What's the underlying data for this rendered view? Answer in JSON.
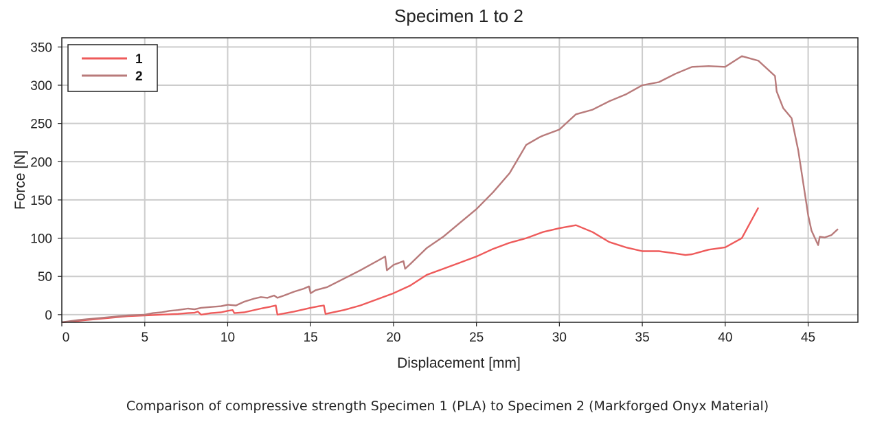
{
  "colors": {
    "series1": "#ee5a5a",
    "series2": "#b87a7a",
    "grid": "#cccccc",
    "axis": "#222222"
  },
  "chart_data": {
    "type": "line",
    "title": "Specimen 1 to 2",
    "xlabel": "Displacement [mm]",
    "ylabel": "Force [N]",
    "xlim": [
      0,
      48
    ],
    "ylim": [
      -10,
      362
    ],
    "xticks": [
      0,
      5,
      10,
      15,
      20,
      25,
      30,
      35,
      40,
      45
    ],
    "yticks": [
      0,
      50,
      100,
      150,
      200,
      250,
      300,
      350
    ],
    "grid": true,
    "legend_position": "top-left",
    "series": [
      {
        "name": "1",
        "color": "#ee5a5a",
        "points": [
          [
            0,
            -10
          ],
          [
            1,
            -8
          ],
          [
            2,
            -6
          ],
          [
            3,
            -4
          ],
          [
            4,
            -2
          ],
          [
            5,
            -1
          ],
          [
            6,
            0
          ],
          [
            7,
            1
          ],
          [
            7.6,
            2
          ],
          [
            8,
            2.5
          ],
          [
            8.2,
            4
          ],
          [
            8.4,
            0
          ],
          [
            9,
            2
          ],
          [
            9.6,
            3
          ],
          [
            10,
            5
          ],
          [
            10.3,
            6
          ],
          [
            10.4,
            2
          ],
          [
            11,
            3
          ],
          [
            12,
            8
          ],
          [
            12.5,
            10
          ],
          [
            12.9,
            12
          ],
          [
            13,
            0
          ],
          [
            14,
            4
          ],
          [
            15,
            9
          ],
          [
            15.5,
            11
          ],
          [
            15.8,
            12
          ],
          [
            15.9,
            1
          ],
          [
            17,
            6
          ],
          [
            18,
            12
          ],
          [
            19,
            20
          ],
          [
            20,
            28
          ],
          [
            21,
            38
          ],
          [
            22,
            52
          ],
          [
            23,
            60
          ],
          [
            24,
            68
          ],
          [
            25,
            76
          ],
          [
            26,
            86
          ],
          [
            27,
            94
          ],
          [
            28,
            100
          ],
          [
            29,
            108
          ],
          [
            30,
            113
          ],
          [
            31,
            117
          ],
          [
            32,
            108
          ],
          [
            33,
            95
          ],
          [
            34,
            88
          ],
          [
            35,
            83
          ],
          [
            36,
            83
          ],
          [
            37,
            80
          ],
          [
            37.6,
            78
          ],
          [
            38,
            79
          ],
          [
            39,
            85
          ],
          [
            40,
            88
          ],
          [
            41,
            100
          ],
          [
            41.2,
            108
          ],
          [
            42,
            140
          ]
        ]
      },
      {
        "name": "2",
        "color": "#b87a7a",
        "points": [
          [
            0,
            -10
          ],
          [
            1,
            -7
          ],
          [
            2,
            -5
          ],
          [
            3,
            -3
          ],
          [
            4,
            -1
          ],
          [
            5,
            0
          ],
          [
            5.5,
            2
          ],
          [
            6,
            3
          ],
          [
            6.5,
            5
          ],
          [
            7,
            6
          ],
          [
            7.6,
            8
          ],
          [
            8,
            7
          ],
          [
            8.4,
            9
          ],
          [
            9,
            10
          ],
          [
            9.6,
            11
          ],
          [
            10,
            13
          ],
          [
            10.5,
            12
          ],
          [
            11,
            17
          ],
          [
            11.6,
            21
          ],
          [
            12,
            23
          ],
          [
            12.4,
            22
          ],
          [
            12.8,
            25
          ],
          [
            13,
            22
          ],
          [
            13.4,
            25
          ],
          [
            14,
            30
          ],
          [
            14.6,
            34
          ],
          [
            14.9,
            37
          ],
          [
            15,
            28
          ],
          [
            15.3,
            32
          ],
          [
            16,
            36
          ],
          [
            17,
            47
          ],
          [
            18,
            58
          ],
          [
            19,
            70
          ],
          [
            19.5,
            76
          ],
          [
            19.6,
            58
          ],
          [
            20,
            65
          ],
          [
            20.6,
            70
          ],
          [
            20.7,
            60
          ],
          [
            21,
            66
          ],
          [
            22,
            87
          ],
          [
            23,
            102
          ],
          [
            24,
            120
          ],
          [
            25,
            138
          ],
          [
            26,
            160
          ],
          [
            27,
            185
          ],
          [
            28,
            222
          ],
          [
            28.8,
            232
          ],
          [
            29,
            234
          ],
          [
            30,
            242
          ],
          [
            31,
            262
          ],
          [
            32,
            268
          ],
          [
            33,
            279
          ],
          [
            34,
            288
          ],
          [
            35,
            300
          ],
          [
            36,
            304
          ],
          [
            37,
            315
          ],
          [
            38,
            324
          ],
          [
            39,
            325
          ],
          [
            40,
            324
          ],
          [
            41,
            338
          ],
          [
            42,
            332
          ],
          [
            43,
            312
          ],
          [
            43.1,
            292
          ],
          [
            43.5,
            270
          ],
          [
            44,
            257
          ],
          [
            44.4,
            215
          ],
          [
            45,
            130
          ],
          [
            45.2,
            110
          ],
          [
            45.6,
            91
          ],
          [
            45.7,
            102
          ],
          [
            46,
            101
          ],
          [
            46.4,
            104
          ],
          [
            46.8,
            112
          ]
        ]
      }
    ]
  },
  "caption": "Comparison of compressive strength Specimen 1 (PLA) to Specimen 2 (Markforged Onyx Material)"
}
